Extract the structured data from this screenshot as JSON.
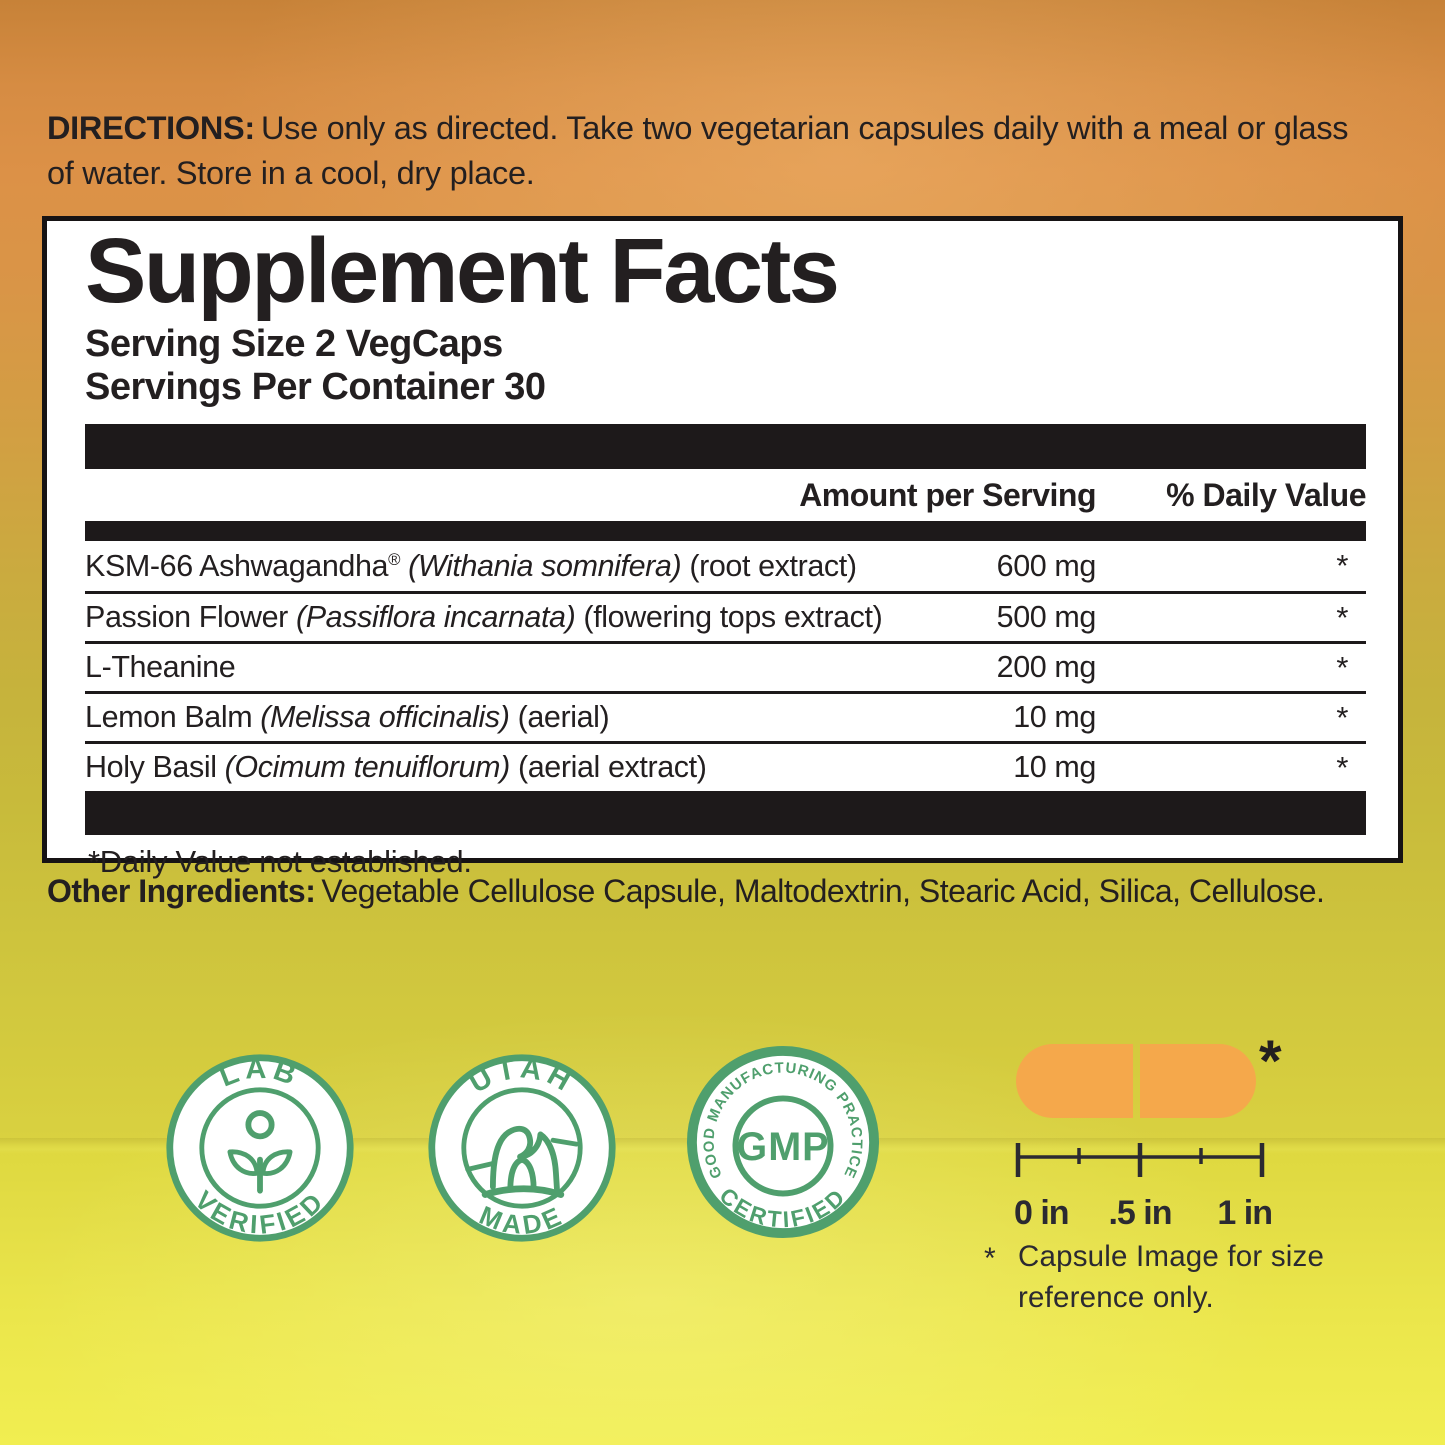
{
  "directions": {
    "label": "DIRECTIONS:",
    "line1": "Use only as directed. Take two vegetarian capsules daily with a meal or glass",
    "line2": "of water. Store in a cool, dry place."
  },
  "supplement_facts": {
    "title": "Supplement Facts",
    "serving_size": "Serving Size 2 VegCaps",
    "servings_per_container": "Servings Per Container 30",
    "header": {
      "amount": "Amount per Serving",
      "daily_value": "% Daily Value"
    },
    "rows": [
      {
        "name": [
          {
            "t": "KSM-66 Ashwagandha"
          },
          {
            "t": "®",
            "sup": true
          },
          {
            "t": " "
          },
          {
            "t": "(Withania somnifera)",
            "i": true
          },
          {
            "t": " (root extract)"
          }
        ],
        "amount": "600 mg",
        "daily_value": "*"
      },
      {
        "name": [
          {
            "t": "Passion Flower "
          },
          {
            "t": "(Passiflora incarnata)",
            "i": true
          },
          {
            "t": " (flowering tops extract)"
          }
        ],
        "amount": "500 mg",
        "daily_value": "*"
      },
      {
        "name": [
          {
            "t": "L-Theanine"
          }
        ],
        "amount": "200 mg",
        "daily_value": "*"
      },
      {
        "name": [
          {
            "t": "Lemon Balm "
          },
          {
            "t": "(Melissa officinalis)",
            "i": true
          },
          {
            "t": " (aerial)"
          }
        ],
        "amount": "10 mg",
        "daily_value": "*"
      },
      {
        "name": [
          {
            "t": "Holy Basil "
          },
          {
            "t": "(Ocimum tenuiflorum)",
            "i": true
          },
          {
            "t": " (aerial extract)"
          }
        ],
        "amount": "10 mg",
        "daily_value": "*"
      }
    ],
    "footnote": "*Daily Value not established."
  },
  "other_ingredients": {
    "label": "Other Ingredients:",
    "text": "Vegetable Cellulose Capsule, Maltodextrin, Stearic Acid, Silica, Cellulose."
  },
  "badges": [
    {
      "id": "lab-verified",
      "top": "LAB",
      "bottom": "VERIFIED",
      "icon": "sprout-icon"
    },
    {
      "id": "utah-made",
      "top": "UTAH",
      "bottom": "MADE",
      "icon": "arch-icon"
    },
    {
      "id": "gmp-certified",
      "top": "GOOD MANUFACTURING PRACTICE",
      "bottom": "CERTIFIED",
      "center": "GMP"
    }
  ],
  "capsule_figure": {
    "asterisk": "*",
    "ruler_labels": {
      "zero": "0 in",
      "half": ".5 in",
      "one": "1 in"
    },
    "note_marker": "*",
    "note_line1": "Capsule Image for size",
    "note_line2": "reference only."
  },
  "colors": {
    "ink": "#231f20",
    "badge_green": "#4f9f6d",
    "capsule_orange": "#f5a84b",
    "background_top_orange": "#d68c43",
    "background_bottom_yellow": "#f1ee51"
  }
}
